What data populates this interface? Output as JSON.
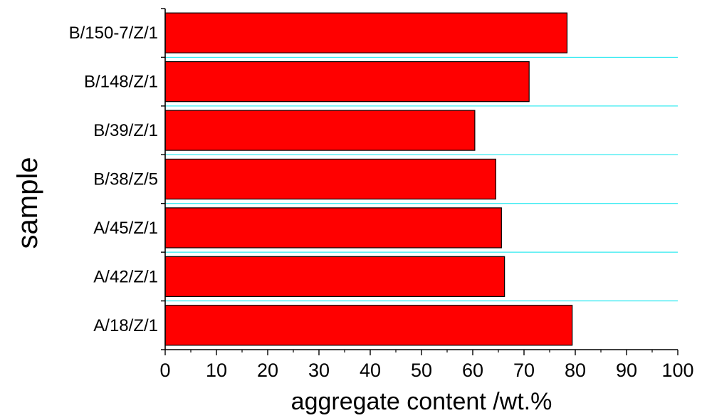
{
  "chart_data": {
    "type": "bar",
    "orientation": "horizontal",
    "categories": [
      "A/18/Z/1",
      "A/42/Z/1",
      "A/45/Z/1",
      "B/38/Z/5",
      "B/39/Z/1",
      "B/148/Z/1",
      "B/150-7/Z/1"
    ],
    "values": [
      79.4,
      66.2,
      65.6,
      64.5,
      60.4,
      71.0,
      78.4
    ],
    "xlabel": "aggregate content /wt.%",
    "ylabel": "sample",
    "xlim": [
      0,
      100
    ],
    "xticks": [
      "0",
      "10",
      "20",
      "30",
      "40",
      "50",
      "60",
      "70",
      "80",
      "90",
      "100"
    ],
    "grid": "horizontal",
    "legend": "none",
    "colors": {
      "bar_fill": "#ff0000",
      "bar_stroke": "#000000",
      "grid": "#00e5ee",
      "axis": "#000000"
    }
  }
}
